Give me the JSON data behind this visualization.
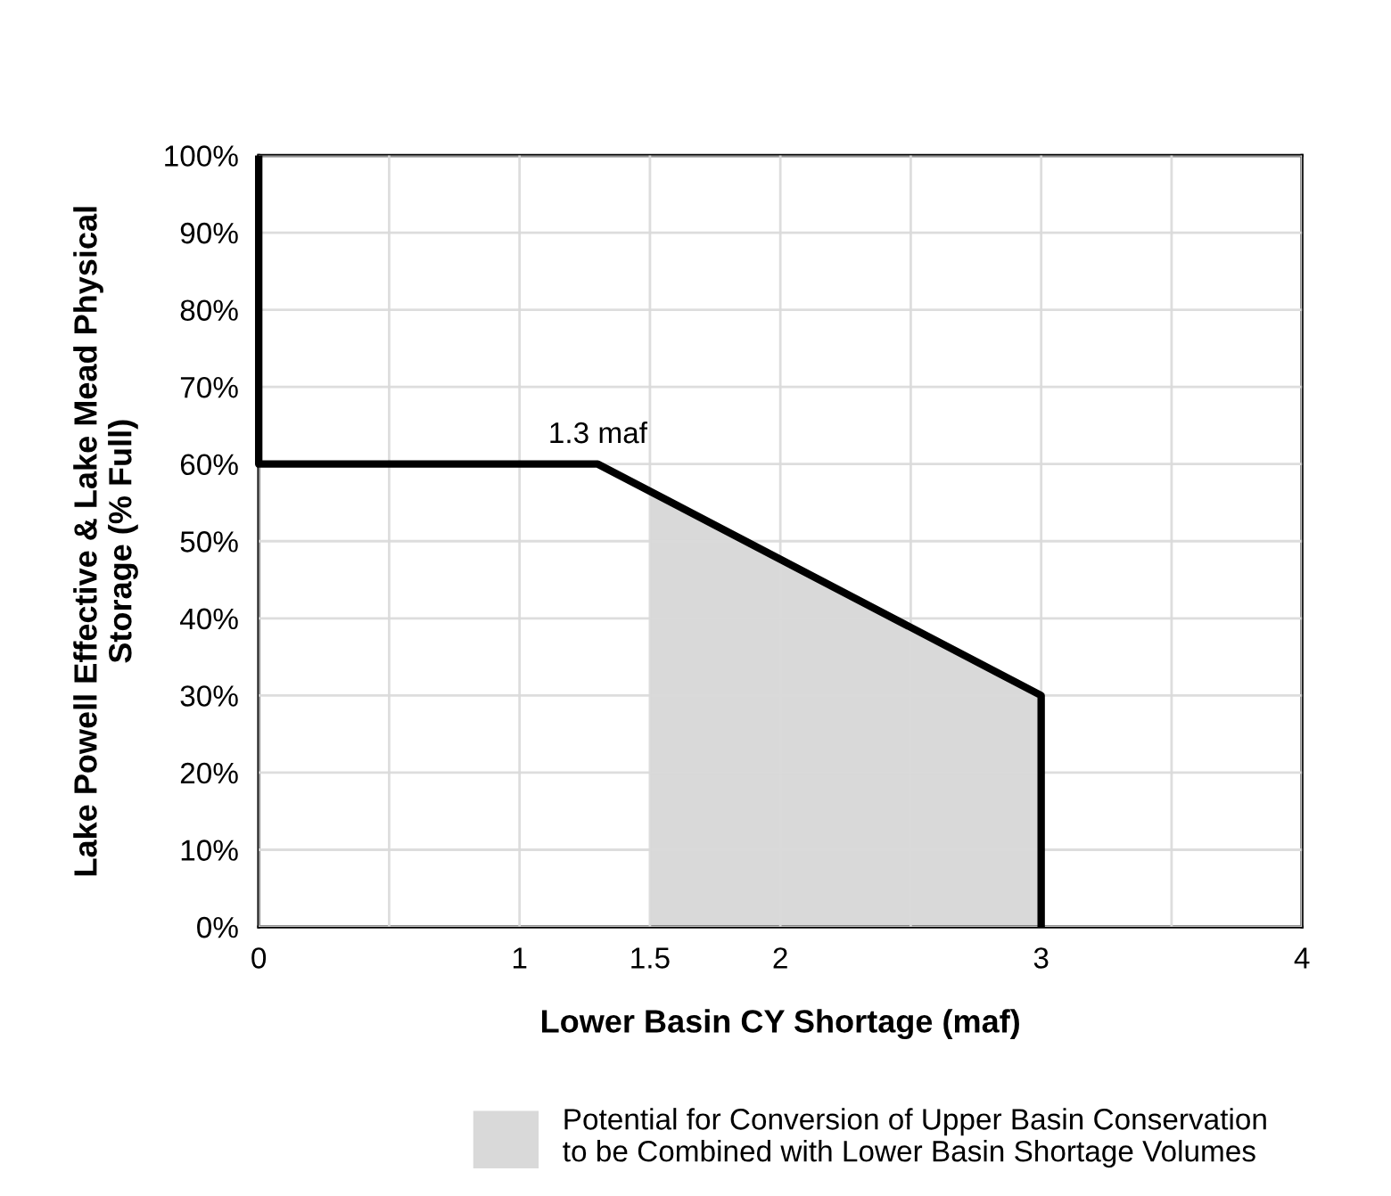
{
  "chart_data": {
    "type": "line",
    "xlabel": "Lower Basin CY Shortage (maf)",
    "ylabel": "Lake Powell Effective & Lake Mead Physical\nStorage (% Full)",
    "series": [
      {
        "type": "area",
        "name": "Potential for Conversion of Upper Basin Conservation\nto be Combined with Lower Basin Shortage Volumes",
        "color": "#d9d9d9",
        "x": [
          1.5,
          3
        ],
        "values": [
          56.5,
          30
        ]
      },
      {
        "color": "#000000",
        "x": [
          0,
          0,
          1.3,
          3,
          3
        ],
        "values": [
          100,
          60,
          60,
          30,
          0
        ]
      }
    ],
    "annotations": [
      {
        "text": "1.3 maf",
        "x": 1.3,
        "y": 60
      }
    ],
    "xlim": [
      0,
      4
    ],
    "xticks": [
      0,
      {
        "value": 0.5,
        "label": null
      },
      1,
      1.5,
      2,
      {
        "value": 2.5,
        "label": null
      },
      3,
      {
        "value": 3.5,
        "label": null
      },
      4
    ],
    "ylim": [
      0,
      100
    ],
    "yticks": [
      {
        "value": 0,
        "label": "0%"
      },
      {
        "value": 10,
        "label": "10%"
      },
      {
        "value": 20,
        "label": "20%"
      },
      {
        "value": 30,
        "label": "30%"
      },
      {
        "value": 40,
        "label": "40%"
      },
      {
        "value": 50,
        "label": "50%"
      },
      {
        "value": 60,
        "label": "60%"
      },
      {
        "value": 70,
        "label": "70%"
      },
      {
        "value": 80,
        "label": "80%"
      },
      {
        "value": 90,
        "label": "90%"
      },
      {
        "value": 100,
        "label": "100%"
      }
    ],
    "grid": true,
    "legend": "bottom",
    "marker": "none",
    "line_style": "solid"
  }
}
